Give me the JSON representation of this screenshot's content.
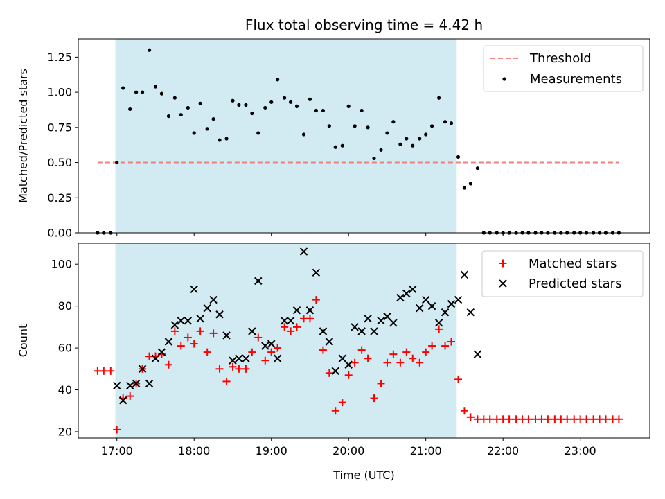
{
  "chart_data": [
    {
      "type": "scatter",
      "title": "Flux total observing time = 4.42 h",
      "ylabel": "Matched/Predicted stars",
      "xlabel": "",
      "xlim": [
        16.5,
        23.9
      ],
      "ylim": [
        0.0,
        1.38
      ],
      "yticks": [
        "0.00",
        "0.25",
        "0.50",
        "0.75",
        "1.00",
        "1.25"
      ],
      "xticks": [
        "17:00",
        "18:00",
        "19:00",
        "20:00",
        "21:00",
        "22:00",
        "23:00"
      ],
      "shaded_interval": [
        16.98,
        21.4
      ],
      "threshold": {
        "name": "Threshold",
        "value": 0.5,
        "x_range": [
          16.75,
          23.5
        ],
        "color": "#f08080"
      },
      "legend_position": "top-right",
      "series": [
        {
          "name": "Measurements",
          "color": "#000000",
          "points": [
            [
              16.75,
              0.0
            ],
            [
              16.83,
              0.0
            ],
            [
              16.92,
              0.0
            ],
            [
              17.0,
              0.5
            ],
            [
              17.08,
              1.03
            ],
            [
              17.17,
              0.88
            ],
            [
              17.25,
              1.0
            ],
            [
              17.33,
              1.0
            ],
            [
              17.42,
              1.3
            ],
            [
              17.5,
              1.04
            ],
            [
              17.58,
              0.99
            ],
            [
              17.67,
              0.83
            ],
            [
              17.75,
              0.96
            ],
            [
              17.83,
              0.84
            ],
            [
              17.92,
              0.89
            ],
            [
              18.0,
              0.71
            ],
            [
              18.08,
              0.92
            ],
            [
              18.17,
              0.74
            ],
            [
              18.25,
              0.81
            ],
            [
              18.33,
              0.66
            ],
            [
              18.42,
              0.67
            ],
            [
              18.5,
              0.94
            ],
            [
              18.58,
              0.91
            ],
            [
              18.67,
              0.91
            ],
            [
              18.75,
              0.85
            ],
            [
              18.83,
              0.71
            ],
            [
              18.92,
              0.89
            ],
            [
              19.0,
              0.93
            ],
            [
              19.08,
              1.09
            ],
            [
              19.17,
              0.96
            ],
            [
              19.25,
              0.93
            ],
            [
              19.33,
              0.9
            ],
            [
              19.42,
              0.7
            ],
            [
              19.5,
              0.95
            ],
            [
              19.58,
              0.87
            ],
            [
              19.67,
              0.87
            ],
            [
              19.75,
              0.76
            ],
            [
              19.83,
              0.61
            ],
            [
              19.92,
              0.62
            ],
            [
              20.0,
              0.9
            ],
            [
              20.08,
              0.76
            ],
            [
              20.17,
              0.87
            ],
            [
              20.25,
              0.75
            ],
            [
              20.33,
              0.53
            ],
            [
              20.42,
              0.59
            ],
            [
              20.5,
              0.71
            ],
            [
              20.58,
              0.79
            ],
            [
              20.67,
              0.63
            ],
            [
              20.75,
              0.67
            ],
            [
              20.83,
              0.62
            ],
            [
              20.92,
              0.67
            ],
            [
              21.0,
              0.7
            ],
            [
              21.08,
              0.76
            ],
            [
              21.17,
              0.96
            ],
            [
              21.25,
              0.79
            ],
            [
              21.33,
              0.78
            ],
            [
              21.42,
              0.54
            ],
            [
              21.5,
              0.32
            ],
            [
              21.58,
              0.35
            ],
            [
              21.67,
              0.46
            ],
            [
              21.75,
              0.0
            ],
            [
              21.83,
              0.0
            ],
            [
              21.92,
              0.0
            ],
            [
              22.0,
              0.0
            ],
            [
              22.08,
              0.0
            ],
            [
              22.17,
              0.0
            ],
            [
              22.25,
              0.0
            ],
            [
              22.33,
              0.0
            ],
            [
              22.42,
              0.0
            ],
            [
              22.5,
              0.0
            ],
            [
              22.58,
              0.0
            ],
            [
              22.67,
              0.0
            ],
            [
              22.75,
              0.0
            ],
            [
              22.83,
              0.0
            ],
            [
              22.92,
              0.0
            ],
            [
              23.0,
              0.0
            ],
            [
              23.08,
              0.0
            ],
            [
              23.17,
              0.0
            ],
            [
              23.25,
              0.0
            ],
            [
              23.33,
              0.0
            ],
            [
              23.42,
              0.0
            ],
            [
              23.5,
              0.0
            ]
          ]
        }
      ]
    },
    {
      "type": "scatter",
      "title": "",
      "ylabel": "Count",
      "xlabel": "Time (UTC)",
      "xlim": [
        16.5,
        23.9
      ],
      "ylim": [
        17,
        110
      ],
      "yticks": [
        "20",
        "40",
        "60",
        "80",
        "100"
      ],
      "xticks": [
        "17:00",
        "18:00",
        "19:00",
        "20:00",
        "21:00",
        "22:00",
        "23:00"
      ],
      "shaded_interval": [
        16.98,
        21.4
      ],
      "legend_position": "top-right",
      "series": [
        {
          "name": "Matched stars",
          "marker": "plus",
          "color": "#ff0000",
          "points": [
            [
              16.75,
              49
            ],
            [
              16.83,
              49
            ],
            [
              16.92,
              49
            ],
            [
              17.0,
              21
            ],
            [
              17.08,
              36
            ],
            [
              17.17,
              37
            ],
            [
              17.25,
              43
            ],
            [
              17.33,
              50
            ],
            [
              17.42,
              56
            ],
            [
              17.5,
              56
            ],
            [
              17.58,
              57
            ],
            [
              17.67,
              52
            ],
            [
              17.75,
              68
            ],
            [
              17.83,
              61
            ],
            [
              17.92,
              65
            ],
            [
              18.0,
              62
            ],
            [
              18.08,
              68
            ],
            [
              18.17,
              58
            ],
            [
              18.25,
              67
            ],
            [
              18.33,
              50
            ],
            [
              18.42,
              44
            ],
            [
              18.5,
              51
            ],
            [
              18.58,
              50
            ],
            [
              18.67,
              50
            ],
            [
              18.75,
              58
            ],
            [
              18.83,
              65
            ],
            [
              18.92,
              54
            ],
            [
              19.0,
              58
            ],
            [
              19.08,
              60
            ],
            [
              19.17,
              70
            ],
            [
              19.25,
              68
            ],
            [
              19.33,
              70
            ],
            [
              19.42,
              74
            ],
            [
              19.5,
              74
            ],
            [
              19.58,
              83
            ],
            [
              19.67,
              59
            ],
            [
              19.75,
              48
            ],
            [
              19.83,
              30
            ],
            [
              19.92,
              34
            ],
            [
              20.0,
              47
            ],
            [
              20.08,
              53
            ],
            [
              20.17,
              59
            ],
            [
              20.25,
              55
            ],
            [
              20.33,
              36
            ],
            [
              20.42,
              43
            ],
            [
              20.5,
              53
            ],
            [
              20.58,
              57
            ],
            [
              20.67,
              53
            ],
            [
              20.75,
              58
            ],
            [
              20.83,
              55
            ],
            [
              20.92,
              53
            ],
            [
              21.0,
              58
            ],
            [
              21.08,
              61
            ],
            [
              21.17,
              69
            ],
            [
              21.25,
              61
            ],
            [
              21.33,
              63
            ],
            [
              21.42,
              45
            ],
            [
              21.5,
              30
            ],
            [
              21.58,
              27
            ],
            [
              21.67,
              26
            ],
            [
              21.75,
              26
            ],
            [
              21.83,
              26
            ],
            [
              21.92,
              26
            ],
            [
              22.0,
              26
            ],
            [
              22.08,
              26
            ],
            [
              22.17,
              26
            ],
            [
              22.25,
              26
            ],
            [
              22.33,
              26
            ],
            [
              22.42,
              26
            ],
            [
              22.5,
              26
            ],
            [
              22.58,
              26
            ],
            [
              22.67,
              26
            ],
            [
              22.75,
              26
            ],
            [
              22.83,
              26
            ],
            [
              22.92,
              26
            ],
            [
              23.0,
              26
            ],
            [
              23.08,
              26
            ],
            [
              23.17,
              26
            ],
            [
              23.25,
              26
            ],
            [
              23.33,
              26
            ],
            [
              23.42,
              26
            ],
            [
              23.5,
              26
            ]
          ]
        },
        {
          "name": "Predicted stars",
          "marker": "cross",
          "color": "#000000",
          "points": [
            [
              17.0,
              42
            ],
            [
              17.08,
              35
            ],
            [
              17.17,
              42
            ],
            [
              17.25,
              43
            ],
            [
              17.33,
              50
            ],
            [
              17.42,
              43
            ],
            [
              17.5,
              55
            ],
            [
              17.58,
              58
            ],
            [
              17.67,
              63
            ],
            [
              17.75,
              71
            ],
            [
              17.83,
              73
            ],
            [
              17.92,
              73
            ],
            [
              18.0,
              88
            ],
            [
              18.08,
              74
            ],
            [
              18.17,
              79
            ],
            [
              18.25,
              83
            ],
            [
              18.33,
              76
            ],
            [
              18.42,
              66
            ],
            [
              18.5,
              54
            ],
            [
              18.58,
              55
            ],
            [
              18.67,
              55
            ],
            [
              18.75,
              68
            ],
            [
              18.83,
              92
            ],
            [
              18.92,
              61
            ],
            [
              19.0,
              62
            ],
            [
              19.08,
              55
            ],
            [
              19.17,
              73
            ],
            [
              19.25,
              73
            ],
            [
              19.33,
              78
            ],
            [
              19.42,
              106
            ],
            [
              19.5,
              78
            ],
            [
              19.58,
              96
            ],
            [
              19.67,
              68
            ],
            [
              19.75,
              63
            ],
            [
              19.83,
              49
            ],
            [
              19.92,
              55
            ],
            [
              20.0,
              52
            ],
            [
              20.08,
              70
            ],
            [
              20.17,
              68
            ],
            [
              20.25,
              74
            ],
            [
              20.33,
              68
            ],
            [
              20.42,
              73
            ],
            [
              20.5,
              75
            ],
            [
              20.58,
              72
            ],
            [
              20.67,
              84
            ],
            [
              20.75,
              86
            ],
            [
              20.83,
              88
            ],
            [
              20.92,
              79
            ],
            [
              21.0,
              83
            ],
            [
              21.08,
              80
            ],
            [
              21.17,
              72
            ],
            [
              21.25,
              77
            ],
            [
              21.33,
              81
            ],
            [
              21.42,
              83
            ],
            [
              21.5,
              95
            ],
            [
              21.58,
              77
            ],
            [
              21.67,
              57
            ]
          ]
        }
      ]
    }
  ]
}
